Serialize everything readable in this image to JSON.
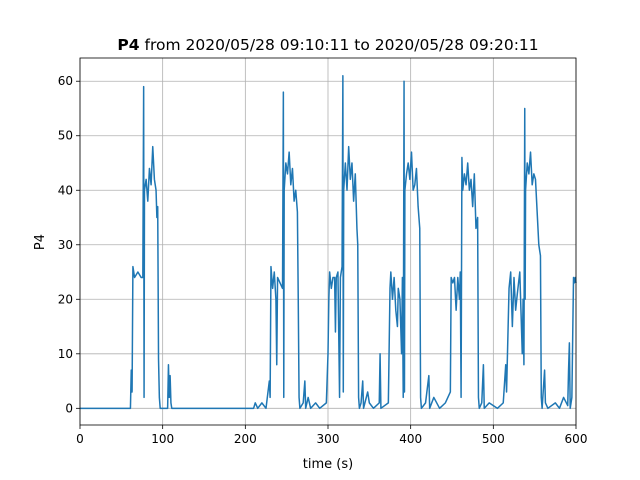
{
  "chart_data": {
    "type": "line",
    "title": {
      "bold": "P4",
      "text": "from 2020/05/28 09:10:11 to 2020/05/28 09:20:11"
    },
    "xlabel": "time (s)",
    "ylabel": "P4",
    "xlim": [
      0,
      600
    ],
    "ylim": [
      -3.06,
      64.26
    ],
    "xticks": [
      0,
      100,
      200,
      300,
      400,
      500,
      600
    ],
    "yticks": [
      0,
      10,
      20,
      30,
      40,
      50,
      60
    ],
    "grid": true,
    "color": "#1f77b4",
    "x": [
      0,
      61,
      62,
      63,
      64,
      66,
      70,
      74,
      76,
      77,
      77.5,
      78,
      80,
      82,
      84,
      86,
      88,
      90,
      92,
      93,
      94,
      95,
      96,
      97,
      106,
      107,
      108,
      109,
      110,
      111,
      210,
      212,
      215,
      220,
      225,
      229,
      230,
      231,
      233,
      235,
      237,
      238,
      239,
      242,
      245,
      246,
      246.5,
      247,
      249,
      251,
      253,
      255,
      257,
      259,
      261,
      263,
      264,
      265,
      266,
      270,
      272,
      273,
      276,
      279,
      285,
      290,
      298,
      300,
      301,
      302,
      304,
      306,
      308,
      309,
      310,
      312,
      314,
      315,
      317,
      318,
      318.5,
      319,
      321,
      323,
      325,
      327,
      329,
      331,
      333,
      335,
      336,
      337,
      338,
      340,
      342,
      343,
      348,
      350,
      355,
      362,
      363,
      364,
      373,
      375,
      376,
      378,
      380,
      382,
      384,
      385,
      387,
      389,
      390,
      391,
      392,
      392.5,
      393,
      395,
      397,
      399,
      401,
      403,
      405,
      407,
      409,
      411,
      412,
      413,
      418,
      422,
      423,
      428,
      435,
      442,
      448,
      449,
      451,
      453,
      455,
      457,
      459,
      460,
      461,
      462,
      463,
      465,
      467,
      469,
      471,
      473,
      475,
      477,
      479,
      481,
      482,
      483,
      486,
      488,
      489,
      495,
      505,
      512,
      515,
      516,
      519,
      521,
      523,
      525,
      527,
      529,
      532,
      535,
      536,
      537,
      538,
      538.5,
      539,
      541,
      543,
      545,
      547,
      549,
      551,
      553,
      555,
      557,
      558,
      559,
      562,
      563,
      566,
      575,
      580,
      585,
      590,
      591,
      592,
      593,
      594,
      595,
      596,
      597,
      598,
      599,
      600
    ],
    "values": [
      0,
      0,
      7,
      3,
      26,
      24,
      25,
      24,
      24,
      59,
      2,
      40,
      42,
      38,
      44,
      41,
      48,
      42,
      40,
      35,
      37,
      9,
      2,
      0,
      0,
      8,
      2,
      6,
      1,
      0,
      0,
      1,
      0,
      1,
      0,
      5,
      2,
      26,
      22,
      25,
      20,
      8,
      24,
      23,
      22,
      58,
      2,
      40,
      45,
      43,
      47,
      41,
      44,
      38,
      40,
      36,
      20,
      2,
      0,
      1,
      5,
      0,
      2,
      0,
      1,
      0,
      1,
      10,
      20,
      25,
      22,
      24,
      24,
      14,
      24,
      25,
      2,
      24,
      26,
      61,
      3,
      40,
      45,
      40,
      48,
      42,
      45,
      38,
      43,
      33,
      30,
      2,
      0,
      1,
      5,
      0,
      3,
      1,
      0,
      1,
      10,
      0,
      1,
      22,
      25,
      20,
      24,
      18,
      15,
      22,
      20,
      10,
      24,
      2,
      60,
      3,
      40,
      43,
      45,
      42,
      47,
      40,
      41,
      44,
      37,
      33,
      2,
      0,
      1,
      6,
      0,
      2,
      0,
      1,
      3,
      24,
      23,
      24,
      18,
      24,
      20,
      25,
      2,
      46,
      40,
      43,
      41,
      45,
      40,
      42,
      37,
      43,
      33,
      35,
      2,
      0,
      1,
      8,
      0,
      1,
      0,
      1,
      8,
      3,
      22,
      25,
      15,
      24,
      18,
      21,
      25,
      10,
      20,
      8,
      55,
      20,
      40,
      45,
      43,
      47,
      41,
      43,
      42,
      36,
      30,
      28,
      2,
      0,
      7,
      1,
      0,
      1,
      0,
      2,
      0.5,
      7,
      12,
      0,
      1,
      2,
      13,
      24,
      23,
      24,
      23
    ]
  }
}
